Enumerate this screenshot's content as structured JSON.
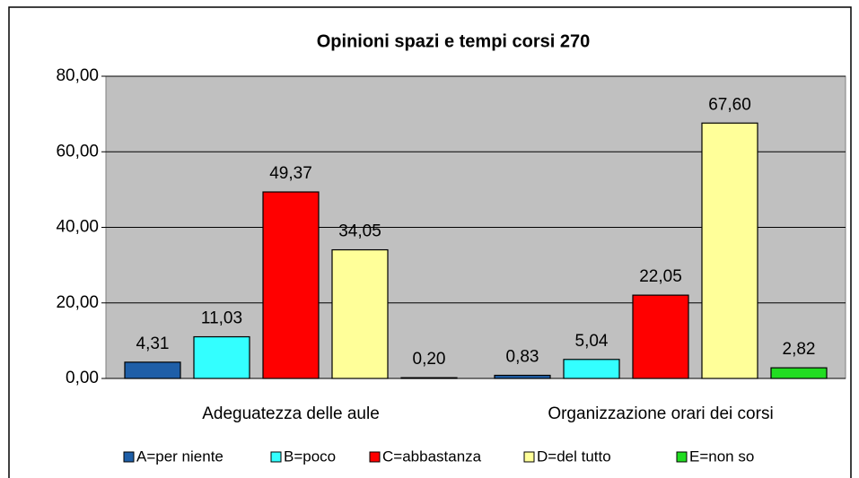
{
  "chart_data": {
    "type": "bar",
    "title": "Opinioni spazi e tempi corsi 270",
    "categories": [
      "Adeguatezza delle aule",
      "Organizzazione orari dei corsi"
    ],
    "series": [
      {
        "name": "A=per niente",
        "color": "#1f5fa8",
        "values": [
          4.31,
          0.83
        ],
        "value_labels": [
          "4,31",
          "0,83"
        ]
      },
      {
        "name": "B=poco",
        "color": "#33ffff",
        "values": [
          11.03,
          5.04
        ],
        "value_labels": [
          "11,03",
          "5,04"
        ]
      },
      {
        "name": "C=abbastanza",
        "color": "#ff0000",
        "values": [
          49.37,
          22.05
        ],
        "value_labels": [
          "49,37",
          "22,05"
        ]
      },
      {
        "name": "D=del tutto",
        "color": "#ffff99",
        "values": [
          34.05,
          67.6
        ],
        "value_labels": [
          "34,05",
          "67,60"
        ]
      },
      {
        "name": "E=non so",
        "color": "#22dd22",
        "values": [
          0.2,
          2.82
        ],
        "value_labels": [
          "0,20",
          "2,82"
        ]
      }
    ],
    "ylim": [
      0,
      80
    ],
    "yticks": [
      {
        "value": 0,
        "label": "0,00"
      },
      {
        "value": 20,
        "label": "20,00"
      },
      {
        "value": 40,
        "label": "40,00"
      },
      {
        "value": 60,
        "label": "60,00"
      },
      {
        "value": 80,
        "label": "80,00"
      }
    ],
    "plot_background": "#c0c0c0",
    "legend": "bottom"
  }
}
